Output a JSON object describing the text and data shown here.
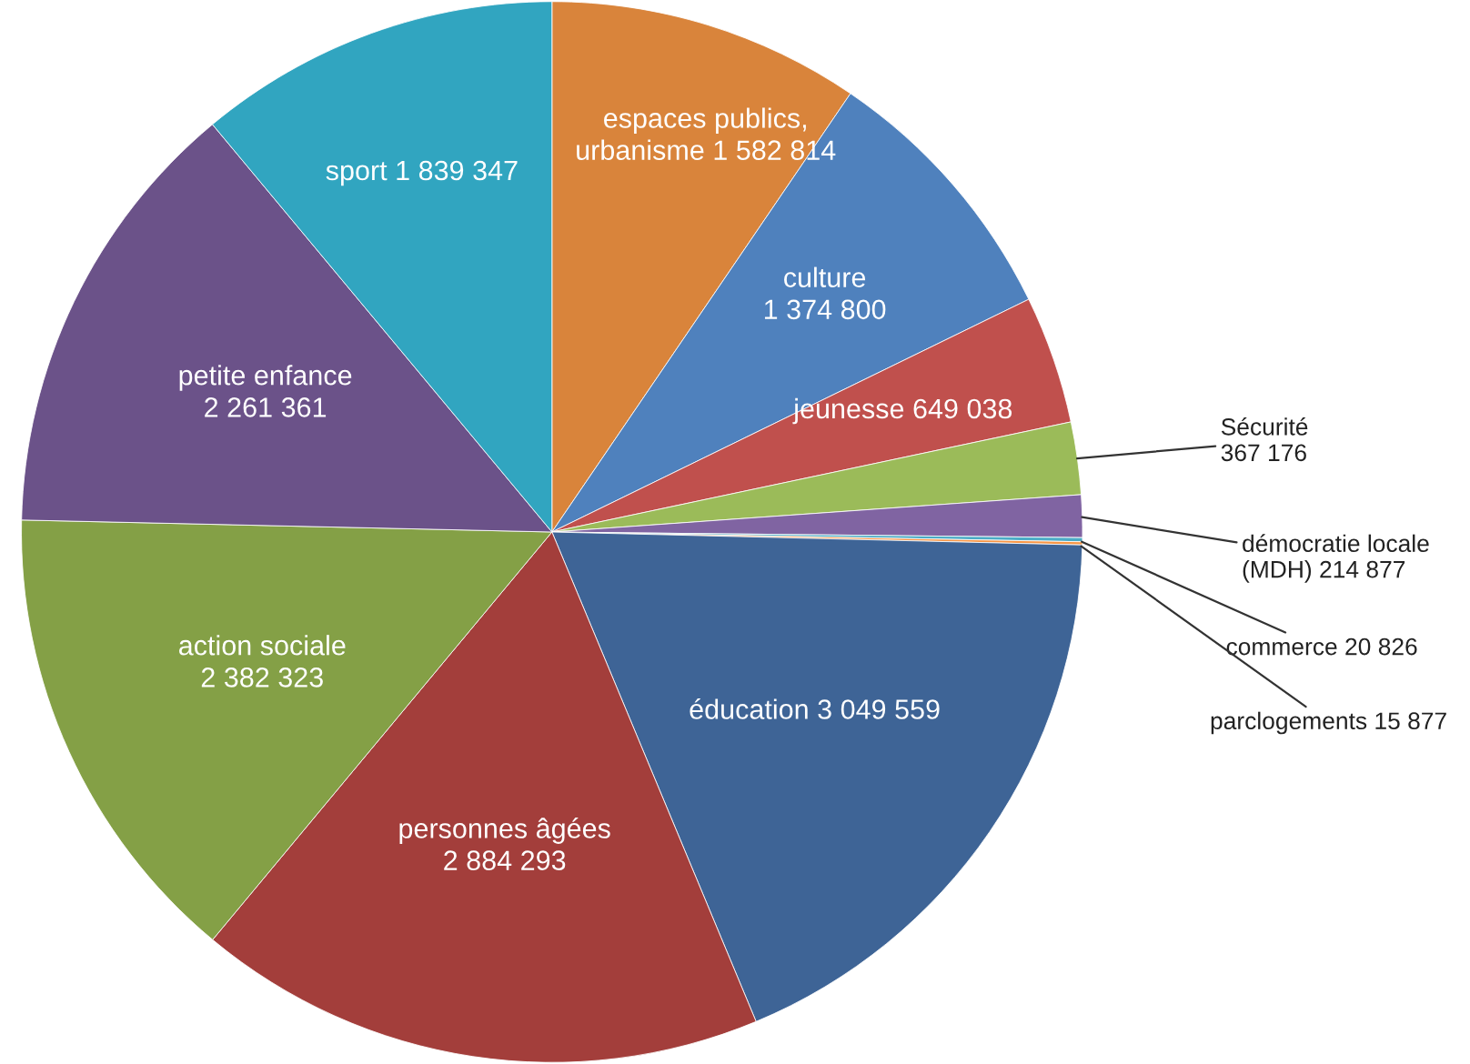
{
  "chart_data": {
    "type": "pie",
    "categories": [
      "espaces publics, urbanisme",
      "culture",
      "jeunesse",
      "Sécurité",
      "démocratie locale (MDH)",
      "commerce",
      "parclogements",
      "éducation",
      "personnes âgées",
      "action sociale",
      "petite enfance",
      "sport"
    ],
    "values": [
      1582814,
      1374800,
      649038,
      367176,
      214877,
      20826,
      15877,
      3049559,
      2884293,
      2382323,
      2261361,
      1839347
    ],
    "value_labels": [
      "1 582 814",
      "1 374 800",
      "649 038",
      "367 176",
      "214 877",
      "20 826",
      "15 877",
      "3 049 559",
      "2 884 293",
      "2 382 323",
      "2 261 361",
      "1 839 347"
    ],
    "colors": [
      "#d9843b",
      "#4f81bd",
      "#c0504d",
      "#9bbb59",
      "#8064a2",
      "#4bacc6",
      "#f79646",
      "#3e6496",
      "#a33e3b",
      "#84a046",
      "#6b5289",
      "#31a5c0"
    ]
  }
}
